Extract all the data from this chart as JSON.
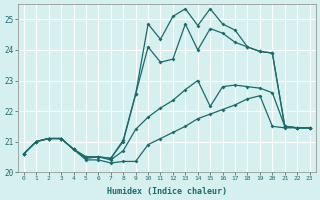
{
  "xlabel": "Humidex (Indice chaleur)",
  "bg_color": "#d6f0f0",
  "grid_color": "#c8e8e8",
  "line_color": "#1a6b6b",
  "xlim": [
    -0.5,
    23.5
  ],
  "ylim": [
    20,
    25.5
  ],
  "yticks": [
    20,
    21,
    22,
    23,
    24,
    25
  ],
  "xticks": [
    0,
    1,
    2,
    3,
    4,
    5,
    6,
    7,
    8,
    9,
    10,
    11,
    12,
    13,
    14,
    15,
    16,
    17,
    18,
    19,
    20,
    21,
    22,
    23
  ],
  "s1_x": [
    0,
    1,
    2,
    3,
    4,
    5,
    6,
    7,
    8,
    9,
    10,
    11,
    12,
    13,
    14,
    15,
    16,
    17,
    18,
    19,
    20,
    21,
    22,
    23
  ],
  "s1_y": [
    20.6,
    21.0,
    21.1,
    21.1,
    20.75,
    20.4,
    20.4,
    20.3,
    20.35,
    20.35,
    20.9,
    21.1,
    21.3,
    21.5,
    21.75,
    21.9,
    22.05,
    22.2,
    22.4,
    22.5,
    21.5,
    21.45,
    21.45,
    21.45
  ],
  "s2_x": [
    0,
    1,
    2,
    3,
    4,
    5,
    6,
    7,
    8,
    9,
    10,
    11,
    12,
    13,
    14,
    15,
    16,
    17,
    18,
    19,
    20,
    21,
    22,
    23
  ],
  "s2_y": [
    20.6,
    21.0,
    21.1,
    21.1,
    20.75,
    20.45,
    20.5,
    20.4,
    20.7,
    21.4,
    21.8,
    22.1,
    22.35,
    22.7,
    23.0,
    22.15,
    22.8,
    22.85,
    22.8,
    22.75,
    22.6,
    21.5,
    21.45,
    21.45
  ],
  "s3_x": [
    0,
    1,
    2,
    3,
    4,
    5,
    6,
    7,
    8,
    9,
    10,
    11,
    12,
    13,
    14,
    15,
    16,
    17,
    18,
    19,
    20,
    21,
    22,
    23
  ],
  "s3_y": [
    20.6,
    21.0,
    21.1,
    21.1,
    20.75,
    20.5,
    20.5,
    20.45,
    21.05,
    22.55,
    24.1,
    23.6,
    23.7,
    24.85,
    24.0,
    24.7,
    24.55,
    24.25,
    24.1,
    23.95,
    23.9,
    21.5,
    21.45,
    21.45
  ],
  "s4_x": [
    0,
    1,
    2,
    3,
    4,
    5,
    6,
    7,
    8,
    9,
    10,
    11,
    12,
    13,
    14,
    15,
    16,
    17,
    18,
    19,
    20,
    21,
    22,
    23
  ],
  "s4_y": [
    20.6,
    21.0,
    21.1,
    21.1,
    20.75,
    20.5,
    20.5,
    20.45,
    21.0,
    22.55,
    24.85,
    24.35,
    25.1,
    25.35,
    24.8,
    25.35,
    24.85,
    24.65,
    24.1,
    23.95,
    23.9,
    21.5,
    21.45,
    21.45
  ]
}
